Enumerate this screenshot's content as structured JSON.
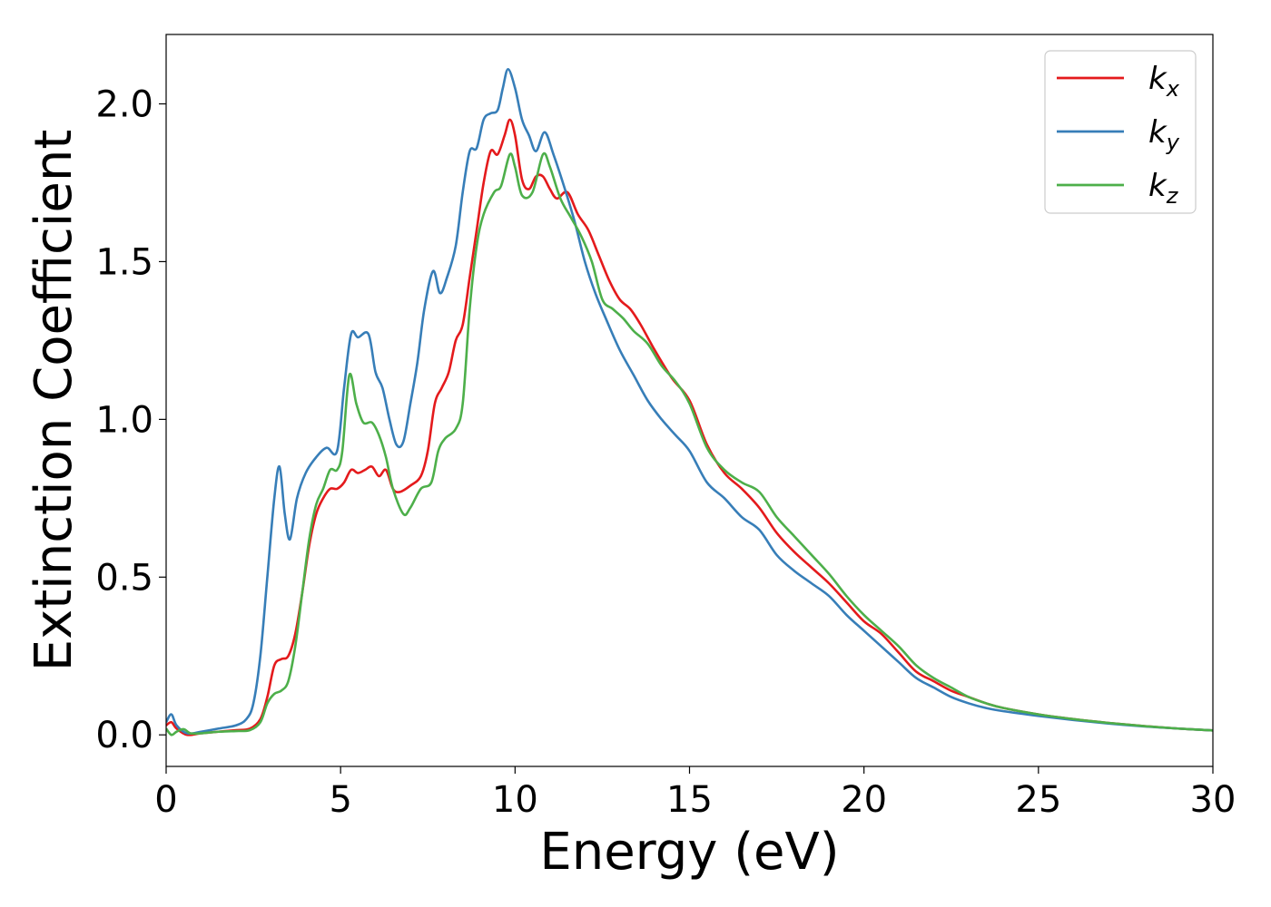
{
  "chart_data": {
    "type": "line",
    "title": "",
    "xlabel": "Energy (eV)",
    "ylabel": "Extinction Coefficient",
    "xlim": [
      0,
      30
    ],
    "ylim": [
      -0.1,
      2.22
    ],
    "xticks": [
      0,
      5,
      10,
      15,
      20,
      25,
      30
    ],
    "yticks": [
      0.0,
      0.5,
      1.0,
      1.5,
      2.0
    ],
    "xtick_labels": [
      "0",
      "5",
      "10",
      "15",
      "20",
      "25",
      "30"
    ],
    "ytick_labels": [
      "0.0",
      "0.5",
      "1.0",
      "1.5",
      "2.0"
    ],
    "grid": false,
    "legend_position": "top-right",
    "series": [
      {
        "name": "k",
        "subscript": "x",
        "color": "#e41a1c",
        "points": [
          [
            0,
            0.03
          ],
          [
            0.15,
            0.04
          ],
          [
            0.3,
            0.02
          ],
          [
            0.6,
            0.0
          ],
          [
            1.0,
            0.005
          ],
          [
            1.5,
            0.01
          ],
          [
            2.0,
            0.015
          ],
          [
            2.4,
            0.02
          ],
          [
            2.7,
            0.05
          ],
          [
            2.9,
            0.12
          ],
          [
            3.1,
            0.22
          ],
          [
            3.3,
            0.24
          ],
          [
            3.5,
            0.25
          ],
          [
            3.7,
            0.32
          ],
          [
            3.9,
            0.45
          ],
          [
            4.1,
            0.6
          ],
          [
            4.3,
            0.7
          ],
          [
            4.5,
            0.75
          ],
          [
            4.7,
            0.78
          ],
          [
            4.9,
            0.78
          ],
          [
            5.1,
            0.8
          ],
          [
            5.3,
            0.84
          ],
          [
            5.5,
            0.83
          ],
          [
            5.7,
            0.84
          ],
          [
            5.9,
            0.85
          ],
          [
            6.1,
            0.82
          ],
          [
            6.3,
            0.84
          ],
          [
            6.5,
            0.78
          ],
          [
            6.7,
            0.77
          ],
          [
            7.0,
            0.79
          ],
          [
            7.3,
            0.82
          ],
          [
            7.5,
            0.9
          ],
          [
            7.7,
            1.05
          ],
          [
            7.9,
            1.1
          ],
          [
            8.1,
            1.15
          ],
          [
            8.3,
            1.25
          ],
          [
            8.5,
            1.3
          ],
          [
            8.7,
            1.45
          ],
          [
            8.9,
            1.6
          ],
          [
            9.1,
            1.75
          ],
          [
            9.3,
            1.85
          ],
          [
            9.5,
            1.84
          ],
          [
            9.7,
            1.9
          ],
          [
            9.85,
            1.95
          ],
          [
            10.0,
            1.9
          ],
          [
            10.2,
            1.76
          ],
          [
            10.4,
            1.73
          ],
          [
            10.6,
            1.77
          ],
          [
            10.8,
            1.77
          ],
          [
            11.0,
            1.73
          ],
          [
            11.2,
            1.7
          ],
          [
            11.5,
            1.72
          ],
          [
            11.8,
            1.65
          ],
          [
            12.1,
            1.6
          ],
          [
            12.4,
            1.52
          ],
          [
            12.7,
            1.44
          ],
          [
            13.0,
            1.38
          ],
          [
            13.3,
            1.35
          ],
          [
            13.6,
            1.3
          ],
          [
            14.0,
            1.22
          ],
          [
            14.5,
            1.13
          ],
          [
            15.0,
            1.06
          ],
          [
            15.5,
            0.92
          ],
          [
            16.0,
            0.83
          ],
          [
            16.5,
            0.78
          ],
          [
            17.0,
            0.72
          ],
          [
            17.5,
            0.64
          ],
          [
            18.0,
            0.58
          ],
          [
            18.5,
            0.53
          ],
          [
            19.0,
            0.48
          ],
          [
            19.5,
            0.42
          ],
          [
            20.0,
            0.36
          ],
          [
            20.5,
            0.32
          ],
          [
            21.0,
            0.26
          ],
          [
            21.5,
            0.2
          ],
          [
            22.0,
            0.17
          ],
          [
            22.5,
            0.14
          ],
          [
            23.0,
            0.12
          ],
          [
            23.5,
            0.1
          ],
          [
            24.0,
            0.085
          ],
          [
            25.0,
            0.065
          ],
          [
            26.0,
            0.05
          ],
          [
            27.0,
            0.038
          ],
          [
            28.0,
            0.028
          ],
          [
            29.0,
            0.02
          ],
          [
            30.0,
            0.014
          ]
        ]
      },
      {
        "name": "k",
        "subscript": "y",
        "color": "#377eb8",
        "points": [
          [
            0,
            0.04
          ],
          [
            0.15,
            0.065
          ],
          [
            0.3,
            0.03
          ],
          [
            0.6,
            0.005
          ],
          [
            1.0,
            0.01
          ],
          [
            1.5,
            0.02
          ],
          [
            2.0,
            0.03
          ],
          [
            2.3,
            0.05
          ],
          [
            2.5,
            0.1
          ],
          [
            2.7,
            0.25
          ],
          [
            2.9,
            0.5
          ],
          [
            3.1,
            0.75
          ],
          [
            3.25,
            0.85
          ],
          [
            3.4,
            0.7
          ],
          [
            3.55,
            0.62
          ],
          [
            3.75,
            0.75
          ],
          [
            4.0,
            0.83
          ],
          [
            4.3,
            0.88
          ],
          [
            4.6,
            0.91
          ],
          [
            4.9,
            0.9
          ],
          [
            5.1,
            1.1
          ],
          [
            5.3,
            1.27
          ],
          [
            5.5,
            1.26
          ],
          [
            5.8,
            1.27
          ],
          [
            6.0,
            1.15
          ],
          [
            6.2,
            1.1
          ],
          [
            6.4,
            1.0
          ],
          [
            6.6,
            0.92
          ],
          [
            6.8,
            0.93
          ],
          [
            7.0,
            1.05
          ],
          [
            7.2,
            1.18
          ],
          [
            7.4,
            1.35
          ],
          [
            7.65,
            1.47
          ],
          [
            7.85,
            1.4
          ],
          [
            8.05,
            1.45
          ],
          [
            8.3,
            1.55
          ],
          [
            8.5,
            1.72
          ],
          [
            8.7,
            1.85
          ],
          [
            8.9,
            1.86
          ],
          [
            9.1,
            1.95
          ],
          [
            9.3,
            1.97
          ],
          [
            9.5,
            1.98
          ],
          [
            9.65,
            2.05
          ],
          [
            9.8,
            2.11
          ],
          [
            10.0,
            2.05
          ],
          [
            10.2,
            1.95
          ],
          [
            10.4,
            1.9
          ],
          [
            10.6,
            1.85
          ],
          [
            10.85,
            1.91
          ],
          [
            11.1,
            1.84
          ],
          [
            11.4,
            1.74
          ],
          [
            11.7,
            1.63
          ],
          [
            12.0,
            1.5
          ],
          [
            12.3,
            1.4
          ],
          [
            12.6,
            1.32
          ],
          [
            13.0,
            1.22
          ],
          [
            13.4,
            1.14
          ],
          [
            13.8,
            1.06
          ],
          [
            14.2,
            1.0
          ],
          [
            14.6,
            0.95
          ],
          [
            15.0,
            0.9
          ],
          [
            15.5,
            0.8
          ],
          [
            16.0,
            0.75
          ],
          [
            16.5,
            0.69
          ],
          [
            17.0,
            0.65
          ],
          [
            17.5,
            0.57
          ],
          [
            18.0,
            0.52
          ],
          [
            18.5,
            0.48
          ],
          [
            19.0,
            0.44
          ],
          [
            19.5,
            0.38
          ],
          [
            20.0,
            0.33
          ],
          [
            20.5,
            0.28
          ],
          [
            21.0,
            0.23
          ],
          [
            21.5,
            0.18
          ],
          [
            22.0,
            0.15
          ],
          [
            22.5,
            0.12
          ],
          [
            23.0,
            0.1
          ],
          [
            23.5,
            0.085
          ],
          [
            24.0,
            0.075
          ],
          [
            25.0,
            0.06
          ],
          [
            26.0,
            0.047
          ],
          [
            27.0,
            0.036
          ],
          [
            28.0,
            0.027
          ],
          [
            29.0,
            0.02
          ],
          [
            30.0,
            0.014
          ]
        ]
      },
      {
        "name": "k",
        "subscript": "z",
        "color": "#4daf4a",
        "points": [
          [
            0,
            0.02
          ],
          [
            0.15,
            0.0
          ],
          [
            0.3,
            0.01
          ],
          [
            0.5,
            0.018
          ],
          [
            0.7,
            0.005
          ],
          [
            1.0,
            0.005
          ],
          [
            1.5,
            0.01
          ],
          [
            2.0,
            0.012
          ],
          [
            2.4,
            0.015
          ],
          [
            2.7,
            0.04
          ],
          [
            2.9,
            0.1
          ],
          [
            3.1,
            0.13
          ],
          [
            3.3,
            0.14
          ],
          [
            3.5,
            0.17
          ],
          [
            3.7,
            0.28
          ],
          [
            3.9,
            0.45
          ],
          [
            4.1,
            0.62
          ],
          [
            4.3,
            0.73
          ],
          [
            4.5,
            0.78
          ],
          [
            4.7,
            0.84
          ],
          [
            4.9,
            0.84
          ],
          [
            5.05,
            0.9
          ],
          [
            5.25,
            1.14
          ],
          [
            5.45,
            1.05
          ],
          [
            5.65,
            0.99
          ],
          [
            5.9,
            0.99
          ],
          [
            6.1,
            0.95
          ],
          [
            6.3,
            0.88
          ],
          [
            6.5,
            0.78
          ],
          [
            6.8,
            0.7
          ],
          [
            7.0,
            0.72
          ],
          [
            7.3,
            0.78
          ],
          [
            7.6,
            0.8
          ],
          [
            7.8,
            0.9
          ],
          [
            8.0,
            0.94
          ],
          [
            8.3,
            0.97
          ],
          [
            8.5,
            1.05
          ],
          [
            8.7,
            1.35
          ],
          [
            8.9,
            1.55
          ],
          [
            9.1,
            1.65
          ],
          [
            9.4,
            1.72
          ],
          [
            9.6,
            1.74
          ],
          [
            9.85,
            1.84
          ],
          [
            10.0,
            1.8
          ],
          [
            10.2,
            1.71
          ],
          [
            10.5,
            1.72
          ],
          [
            10.8,
            1.84
          ],
          [
            11.0,
            1.8
          ],
          [
            11.3,
            1.7
          ],
          [
            11.6,
            1.64
          ],
          [
            11.9,
            1.58
          ],
          [
            12.2,
            1.5
          ],
          [
            12.5,
            1.38
          ],
          [
            12.8,
            1.35
          ],
          [
            13.1,
            1.32
          ],
          [
            13.4,
            1.28
          ],
          [
            13.8,
            1.24
          ],
          [
            14.2,
            1.17
          ],
          [
            14.6,
            1.12
          ],
          [
            15.0,
            1.05
          ],
          [
            15.5,
            0.91
          ],
          [
            16.0,
            0.84
          ],
          [
            16.5,
            0.8
          ],
          [
            17.0,
            0.77
          ],
          [
            17.5,
            0.69
          ],
          [
            18.0,
            0.63
          ],
          [
            18.5,
            0.57
          ],
          [
            19.0,
            0.51
          ],
          [
            19.5,
            0.44
          ],
          [
            20.0,
            0.38
          ],
          [
            20.5,
            0.33
          ],
          [
            21.0,
            0.28
          ],
          [
            21.5,
            0.22
          ],
          [
            22.0,
            0.18
          ],
          [
            22.5,
            0.15
          ],
          [
            23.0,
            0.12
          ],
          [
            23.5,
            0.1
          ],
          [
            24.0,
            0.085
          ],
          [
            25.0,
            0.065
          ],
          [
            26.0,
            0.05
          ],
          [
            27.0,
            0.038
          ],
          [
            28.0,
            0.028
          ],
          [
            29.0,
            0.02
          ],
          [
            30.0,
            0.014
          ]
        ]
      }
    ]
  }
}
